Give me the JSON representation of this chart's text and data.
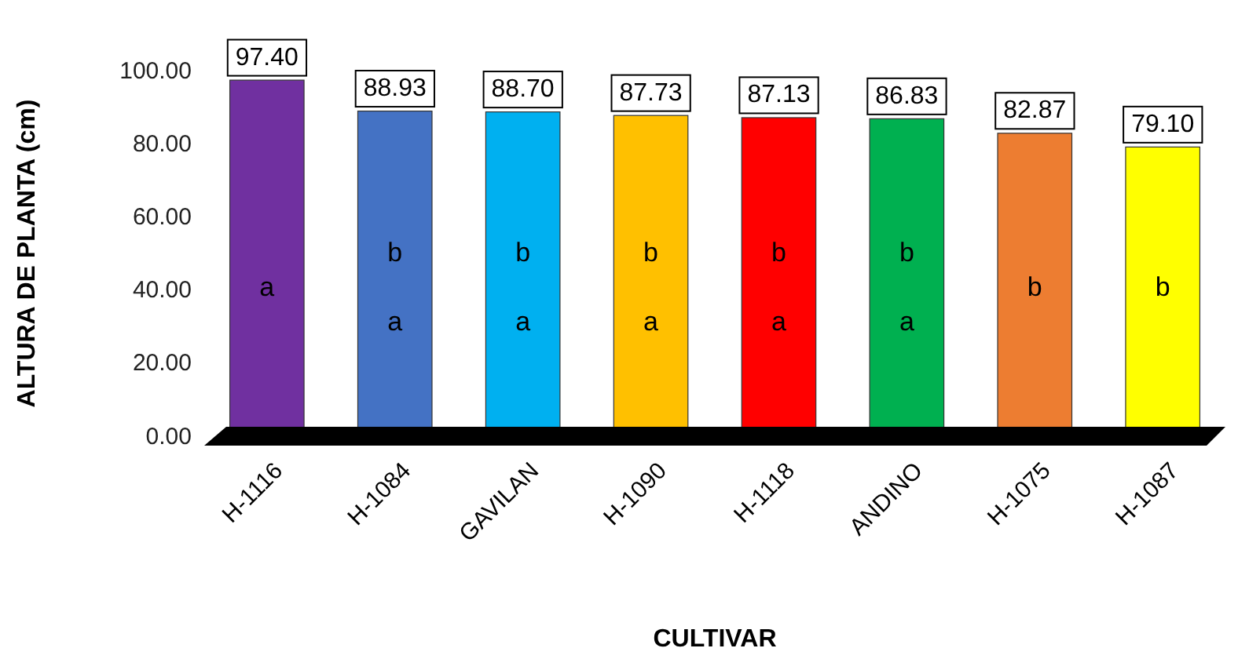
{
  "chart_data": {
    "type": "bar",
    "xlabel": "CULTIVAR",
    "ylabel": "ALTURA DE PLANTA (cm)",
    "categories": [
      "H-1116",
      "H-1084",
      "GAVILAN",
      "H-1090",
      "H-1118",
      "ANDINO",
      "H-1075",
      "H-1087"
    ],
    "values": [
      97.4,
      88.93,
      88.7,
      87.73,
      87.13,
      86.83,
      82.87,
      79.1
    ],
    "value_labels": [
      "97.40",
      "88.93",
      "88.70",
      "87.73",
      "87.13",
      "86.83",
      "82.87",
      "79.10"
    ],
    "colors": [
      "#7030a0",
      "#4472c4",
      "#00b0f0",
      "#ffc000",
      "#ff0000",
      "#00b050",
      "#ed7d31",
      "#ffff00"
    ],
    "ylim": [
      0,
      100
    ],
    "yticks": [
      {
        "value": 0,
        "label": "0.00"
      },
      {
        "value": 20,
        "label": "20.00"
      },
      {
        "value": 40,
        "label": "40.00"
      },
      {
        "value": 60,
        "label": "60.00"
      },
      {
        "value": 80,
        "label": "80.00"
      },
      {
        "value": 100,
        "label": "100.00"
      }
    ],
    "grid": false,
    "annotations": [
      "a",
      "b a",
      "b a",
      "b a",
      "b a",
      "b a",
      "b",
      "b"
    ]
  }
}
